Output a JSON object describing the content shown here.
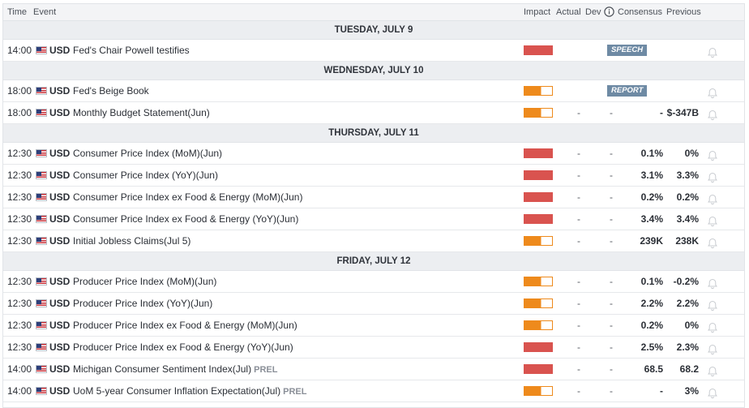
{
  "columns": {
    "time": "Time",
    "event": "Event",
    "impact": "Impact",
    "actual": "Actual",
    "dev": "Dev",
    "consensus": "Consensus",
    "previous": "Previous"
  },
  "icons": {
    "info": "info-icon",
    "flag": "us-flag-icon",
    "bell": "bell-icon"
  },
  "colors": {
    "high": "#d9534f",
    "medium": "#ee8a1c",
    "badge": "#6e8aa4"
  },
  "days": [
    {
      "label": "TUESDAY, JULY 9",
      "events": [
        {
          "time": "14:00",
          "currency": "USD",
          "name": "Fed's Chair Powell testifies",
          "impact": "high",
          "badge": "SPEECH"
        }
      ]
    },
    {
      "label": "WEDNESDAY, JULY 10",
      "events": [
        {
          "time": "18:00",
          "currency": "USD",
          "name": "Fed's Beige Book",
          "impact": "medium",
          "badge": "REPORT"
        },
        {
          "time": "18:00",
          "currency": "USD",
          "name": "Monthly Budget Statement(Jun)",
          "impact": "medium",
          "actual": "-",
          "dev": "-",
          "consensus": "-",
          "previous": "$-347B"
        }
      ]
    },
    {
      "label": "THURSDAY, JULY 11",
      "events": [
        {
          "time": "12:30",
          "currency": "USD",
          "name": "Consumer Price Index (MoM)(Jun)",
          "impact": "high",
          "actual": "-",
          "dev": "-",
          "consensus": "0.1%",
          "previous": "0%"
        },
        {
          "time": "12:30",
          "currency": "USD",
          "name": "Consumer Price Index (YoY)(Jun)",
          "impact": "high",
          "actual": "-",
          "dev": "-",
          "consensus": "3.1%",
          "previous": "3.3%"
        },
        {
          "time": "12:30",
          "currency": "USD",
          "name": "Consumer Price Index ex Food & Energy (MoM)(Jun)",
          "impact": "high",
          "actual": "-",
          "dev": "-",
          "consensus": "0.2%",
          "previous": "0.2%"
        },
        {
          "time": "12:30",
          "currency": "USD",
          "name": "Consumer Price Index ex Food & Energy (YoY)(Jun)",
          "impact": "high",
          "actual": "-",
          "dev": "-",
          "consensus": "3.4%",
          "previous": "3.4%"
        },
        {
          "time": "12:30",
          "currency": "USD",
          "name": "Initial Jobless Claims(Jul 5)",
          "impact": "medium",
          "actual": "-",
          "dev": "-",
          "consensus": "239K",
          "previous": "238K"
        }
      ]
    },
    {
      "label": "FRIDAY, JULY 12",
      "events": [
        {
          "time": "12:30",
          "currency": "USD",
          "name": "Producer Price Index (MoM)(Jun)",
          "impact": "medium",
          "actual": "-",
          "dev": "-",
          "consensus": "0.1%",
          "previous": "-0.2%"
        },
        {
          "time": "12:30",
          "currency": "USD",
          "name": "Producer Price Index (YoY)(Jun)",
          "impact": "medium",
          "actual": "-",
          "dev": "-",
          "consensus": "2.2%",
          "previous": "2.2%"
        },
        {
          "time": "12:30",
          "currency": "USD",
          "name": "Producer Price Index ex Food & Energy (MoM)(Jun)",
          "impact": "medium",
          "actual": "-",
          "dev": "-",
          "consensus": "0.2%",
          "previous": "0%"
        },
        {
          "time": "12:30",
          "currency": "USD",
          "name": "Producer Price Index ex Food & Energy (YoY)(Jun)",
          "impact": "high",
          "actual": "-",
          "dev": "-",
          "consensus": "2.5%",
          "previous": "2.3%"
        },
        {
          "time": "14:00",
          "currency": "USD",
          "name": "Michigan Consumer Sentiment Index(Jul)",
          "tag": "PREL",
          "impact": "high",
          "actual": "-",
          "dev": "-",
          "consensus": "68.5",
          "previous": "68.2"
        },
        {
          "time": "14:00",
          "currency": "USD",
          "name": "UoM 5-year Consumer Inflation Expectation(Jul)",
          "tag": "PREL",
          "impact": "medium",
          "actual": "-",
          "dev": "-",
          "consensus": "-",
          "previous": "3%"
        }
      ]
    }
  ]
}
